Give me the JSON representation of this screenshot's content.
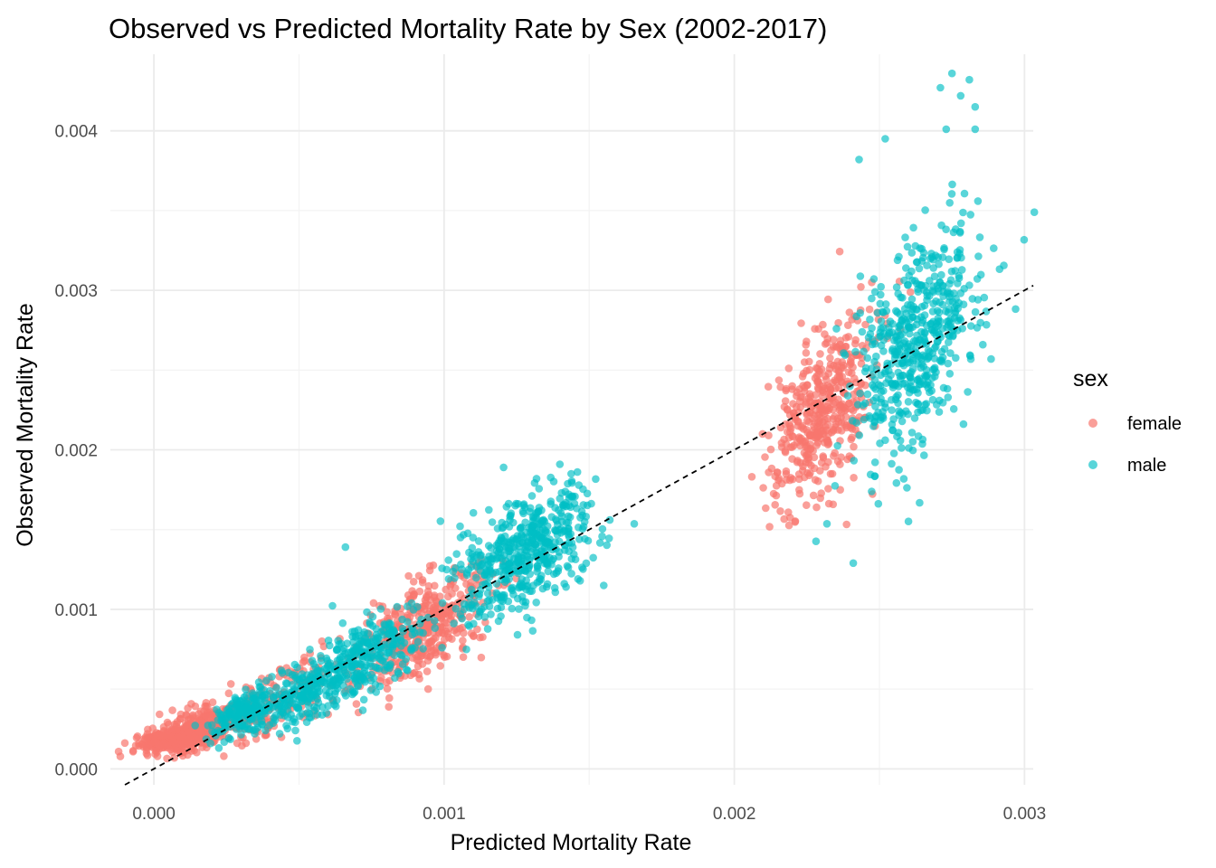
{
  "chart_data": {
    "type": "scatter",
    "title": "Observed vs Predicted Mortality Rate by Sex (2002-2017)",
    "xlabel": "Predicted Mortality Rate",
    "ylabel": "Observed Mortality Rate",
    "xlim": [
      -0.00015,
      0.00303
    ],
    "ylim": [
      -0.0001,
      0.00448
    ],
    "x_ticks": [
      0.0,
      0.001,
      0.002,
      0.003
    ],
    "x_tick_labels": [
      "0.000",
      "0.001",
      "0.002",
      "0.003"
    ],
    "y_ticks": [
      0.0,
      0.001,
      0.002,
      0.003,
      0.004
    ],
    "y_tick_labels": [
      "0.000",
      "0.001",
      "0.002",
      "0.003",
      "0.004"
    ],
    "grid": true,
    "legend": {
      "title": "sex",
      "position": "right"
    },
    "reference_line": {
      "type": "identity",
      "slope": 1,
      "intercept": 0,
      "style": "dashed",
      "color": "#000000"
    },
    "series": [
      {
        "name": "female",
        "color": "#F8766D",
        "opacity": 0.7,
        "clusters": [
          {
            "x_center": 6e-05,
            "x_spread": 6e-05,
            "y_center": 0.00019,
            "y_spread": 4e-05,
            "count": 300
          },
          {
            "x_center": 0.00016,
            "x_spread": 6e-05,
            "y_center": 0.00024,
            "y_spread": 7e-05,
            "count": 260
          },
          {
            "x_center": 0.00034,
            "x_spread": 8e-05,
            "y_center": 0.00037,
            "y_spread": 0.00011,
            "count": 150
          },
          {
            "x_center": 0.00052,
            "x_spread": 7e-05,
            "y_center": 0.00055,
            "y_spread": 0.00014,
            "count": 80
          },
          {
            "x_center": 0.00092,
            "x_spread": 0.00011,
            "y_center": 0.00087,
            "y_spread": 0.00017,
            "count": 420
          },
          {
            "x_center": 0.0023,
            "x_spread": 9e-05,
            "y_center": 0.00225,
            "y_spread": 0.0003,
            "count": 460
          }
        ]
      },
      {
        "name": "male",
        "color": "#00BFC4",
        "opacity": 0.65,
        "clusters": [
          {
            "x_center": 0.00031,
            "x_spread": 6e-05,
            "y_center": 0.00036,
            "y_spread": 8e-05,
            "count": 170
          },
          {
            "x_center": 0.0005,
            "x_spread": 7e-05,
            "y_center": 0.00046,
            "y_spread": 0.0001,
            "count": 170
          },
          {
            "x_center": 0.00072,
            "x_spread": 0.0001,
            "y_center": 0.00071,
            "y_spread": 0.00014,
            "count": 300
          },
          {
            "x_center": 0.00128,
            "x_spread": 0.00012,
            "y_center": 0.00136,
            "y_spread": 0.00021,
            "count": 520
          },
          {
            "x_center": 0.00263,
            "x_spread": 0.00011,
            "y_center": 0.0027,
            "y_spread": 0.00038,
            "count": 540
          }
        ],
        "outliers": [
          {
            "x": 0.00275,
            "y": 0.00436
          },
          {
            "x": 0.00281,
            "y": 0.00432
          },
          {
            "x": 0.00271,
            "y": 0.00427
          },
          {
            "x": 0.00278,
            "y": 0.00422
          },
          {
            "x": 0.00283,
            "y": 0.00415
          },
          {
            "x": 0.00273,
            "y": 0.00401
          },
          {
            "x": 0.00283,
            "y": 0.00401
          },
          {
            "x": 0.00252,
            "y": 0.00395
          },
          {
            "x": 0.00243,
            "y": 0.00382
          },
          {
            "x": 0.00241,
            "y": 0.00129
          },
          {
            "x": 0.00155,
            "y": 0.00115
          },
          {
            "x": 0.00066,
            "y": 0.00139
          }
        ]
      }
    ]
  }
}
